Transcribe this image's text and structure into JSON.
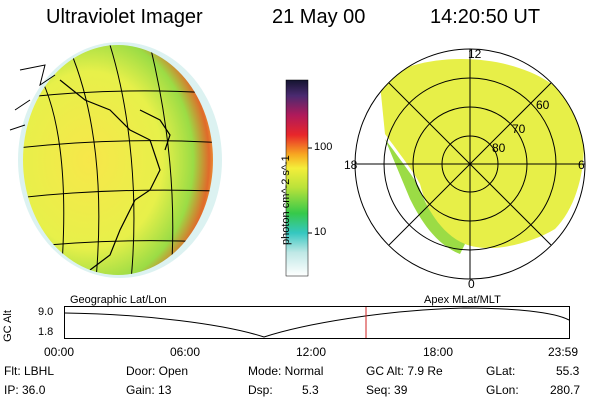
{
  "header": {
    "title": "Ultraviolet Imager",
    "date": "21 May 00",
    "time": "14:20:50 UT"
  },
  "colorbar": {
    "label": "photon cm^-2 s^-1",
    "ticks": [
      "100",
      "10"
    ]
  },
  "polar": {
    "lat_labels": [
      "60",
      "70",
      "80"
    ],
    "mlt_labels": [
      "12",
      "18",
      "6",
      "0"
    ]
  },
  "timeline": {
    "left_label": "Geographic Lat/Lon",
    "right_label": "Apex MLat/MLT",
    "y_label": "GC Alt",
    "y_ticks": [
      "9.0",
      "1.8"
    ],
    "x_ticks": [
      "00:00",
      "06:00",
      "12:00",
      "18:00",
      "23:59"
    ]
  },
  "info": {
    "filter": "Flt: LBHL",
    "ip": "IP: 36.0",
    "door": "Door: Open",
    "gain": "Gain: 13",
    "mode": "Mode: Normal",
    "dsp_label": "Dsp:",
    "dsp_value": "5.3",
    "gc_alt": "GC Alt: 7.9 Re",
    "seq": "Seq: 39",
    "glat_label": "GLat:",
    "glat_value": "55.3",
    "glon_label": "GLon:",
    "glon_value": "280.7"
  }
}
